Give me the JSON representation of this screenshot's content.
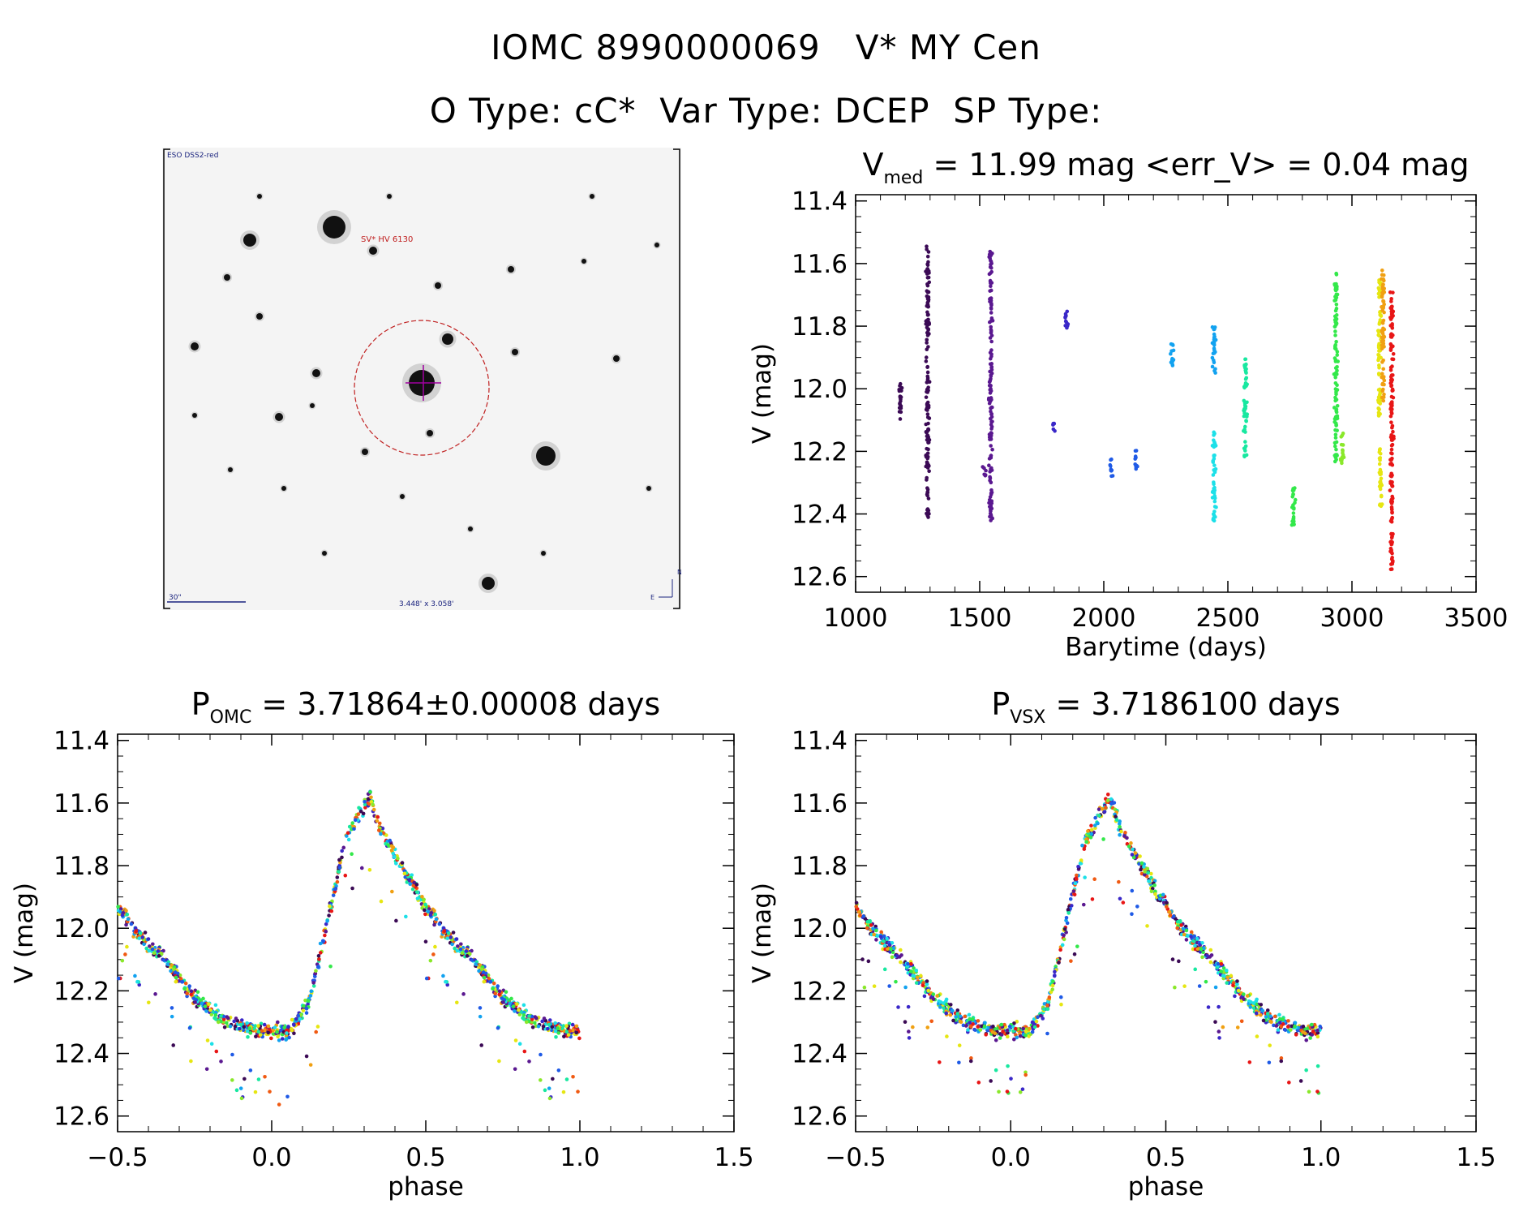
{
  "header": {
    "line1": "IOMC 8990000069   V* MY Cen",
    "line2": "O Type: cC*  Var Type: DCEP  SP Type:"
  },
  "finder_chart": {
    "survey_label": "ESO DSS2-red",
    "target_label": "SV* HV 6130",
    "scale_label": "30\"",
    "fov_label": "3.448' x 3.058'",
    "north_label": "N",
    "east_label": "E"
  },
  "colors": {
    "palette": [
      "#3b0a55",
      "#5a1890",
      "#3a28c8",
      "#1f5ae6",
      "#12a2f0",
      "#1de0e8",
      "#18e8a0",
      "#33e84a",
      "#8ae82a",
      "#e6e612",
      "#f0a012",
      "#f05a12",
      "#e81616"
    ],
    "circle": "#c02020",
    "crosshair": "#a000a0"
  },
  "chart_data": [
    {
      "id": "lightcurve",
      "type": "scatter",
      "title": {
        "main": "V",
        "sub": "med",
        "rest": " = 11.99 mag <err_V> = 0.04 mag"
      },
      "xlabel": "Barytime (days)",
      "ylabel": "V (mag)",
      "xlim": [
        1000,
        3500
      ],
      "ylim": [
        12.65,
        11.38
      ],
      "xticks": [
        "1000",
        "1500",
        "2000",
        "2500",
        "3000",
        "3500"
      ],
      "yticks": [
        "11.4",
        "11.6",
        "11.8",
        "12.0",
        "12.2",
        "12.4",
        "12.6"
      ],
      "median_mag": 11.99,
      "mean_err": 0.04,
      "segments": [
        {
          "x": 1180,
          "ymin": 11.97,
          "ymax": 12.1,
          "color_index": 0
        },
        {
          "x": 1290,
          "ymin": 11.54,
          "ymax": 12.42,
          "color_index": 0
        },
        {
          "x": 1520,
          "ymin": 12.24,
          "ymax": 12.28,
          "color_index": 1
        },
        {
          "x": 1545,
          "ymin": 11.56,
          "ymax": 12.44,
          "color_index": 1
        },
        {
          "x": 1800,
          "ymin": 12.11,
          "ymax": 12.14,
          "color_index": 2
        },
        {
          "x": 1850,
          "ymin": 11.74,
          "ymax": 11.81,
          "color_index": 2
        },
        {
          "x": 2030,
          "ymin": 12.22,
          "ymax": 12.28,
          "color_index": 3
        },
        {
          "x": 2130,
          "ymin": 12.19,
          "ymax": 12.26,
          "color_index": 3
        },
        {
          "x": 2275,
          "ymin": 11.85,
          "ymax": 11.93,
          "color_index": 4
        },
        {
          "x": 2445,
          "ymin": 11.78,
          "ymax": 11.95,
          "color_index": 4
        },
        {
          "x": 2445,
          "ymin": 12.13,
          "ymax": 12.43,
          "color_index": 5
        },
        {
          "x": 2570,
          "ymin": 11.9,
          "ymax": 12.22,
          "color_index": 6
        },
        {
          "x": 2765,
          "ymin": 12.3,
          "ymax": 12.45,
          "color_index": 7
        },
        {
          "x": 2935,
          "ymin": 11.63,
          "ymax": 12.24,
          "color_index": 7
        },
        {
          "x": 2960,
          "ymin": 12.14,
          "ymax": 12.24,
          "color_index": 8
        },
        {
          "x": 3110,
          "ymin": 11.65,
          "ymax": 12.1,
          "color_index": 9
        },
        {
          "x": 3115,
          "ymin": 12.19,
          "ymax": 12.38,
          "color_index": 9
        },
        {
          "x": 3125,
          "ymin": 11.61,
          "ymax": 12.05,
          "color_index": 10
        },
        {
          "x": 3160,
          "ymin": 11.69,
          "ymax": 12.58,
          "color_index": 12
        }
      ]
    },
    {
      "id": "phase-omc",
      "type": "scatter",
      "title": {
        "main": "P",
        "sub": "OMC",
        "rest": " = 3.71864±0.00008 days"
      },
      "xlabel": "phase",
      "ylabel": "V (mag)",
      "xlim": [
        -0.5,
        1.5
      ],
      "ylim": [
        12.65,
        11.38
      ],
      "xticks": [
        "−0.5",
        "0.0",
        "0.5",
        "1.0",
        "1.5"
      ],
      "yticks": [
        "11.4",
        "11.6",
        "11.8",
        "12.0",
        "12.2",
        "12.4",
        "12.6"
      ],
      "period_days": 3.71864,
      "period_err": 8e-05,
      "curve": [
        [
          0.0,
          12.33
        ],
        [
          0.06,
          12.33
        ],
        [
          0.12,
          12.24
        ],
        [
          0.18,
          11.98
        ],
        [
          0.24,
          11.72
        ],
        [
          0.32,
          11.58
        ],
        [
          0.35,
          11.68
        ],
        [
          0.42,
          11.8
        ],
        [
          0.48,
          11.9
        ],
        [
          0.55,
          12.0
        ],
        [
          0.65,
          12.1
        ],
        [
          0.75,
          12.22
        ],
        [
          0.85,
          12.3
        ],
        [
          0.95,
          12.33
        ],
        [
          1.0,
          12.33
        ]
      ]
    },
    {
      "id": "phase-vsx",
      "type": "scatter",
      "title": {
        "main": "P",
        "sub": "VSX",
        "rest": " = 3.7186100 days"
      },
      "xlabel": "phase",
      "ylabel": "V (mag)",
      "xlim": [
        -0.5,
        1.5
      ],
      "ylim": [
        12.65,
        11.38
      ],
      "xticks": [
        "−0.5",
        "0.0",
        "0.5",
        "1.0",
        "1.5"
      ],
      "yticks": [
        "11.4",
        "11.6",
        "11.8",
        "12.0",
        "12.2",
        "12.4",
        "12.6"
      ],
      "period_days": 3.71861,
      "curve": [
        [
          0.0,
          12.33
        ],
        [
          0.06,
          12.33
        ],
        [
          0.12,
          12.24
        ],
        [
          0.18,
          11.98
        ],
        [
          0.24,
          11.72
        ],
        [
          0.32,
          11.58
        ],
        [
          0.35,
          11.68
        ],
        [
          0.42,
          11.8
        ],
        [
          0.48,
          11.9
        ],
        [
          0.55,
          12.0
        ],
        [
          0.65,
          12.1
        ],
        [
          0.75,
          12.22
        ],
        [
          0.85,
          12.3
        ],
        [
          0.95,
          12.33
        ],
        [
          1.0,
          12.33
        ]
      ]
    }
  ]
}
